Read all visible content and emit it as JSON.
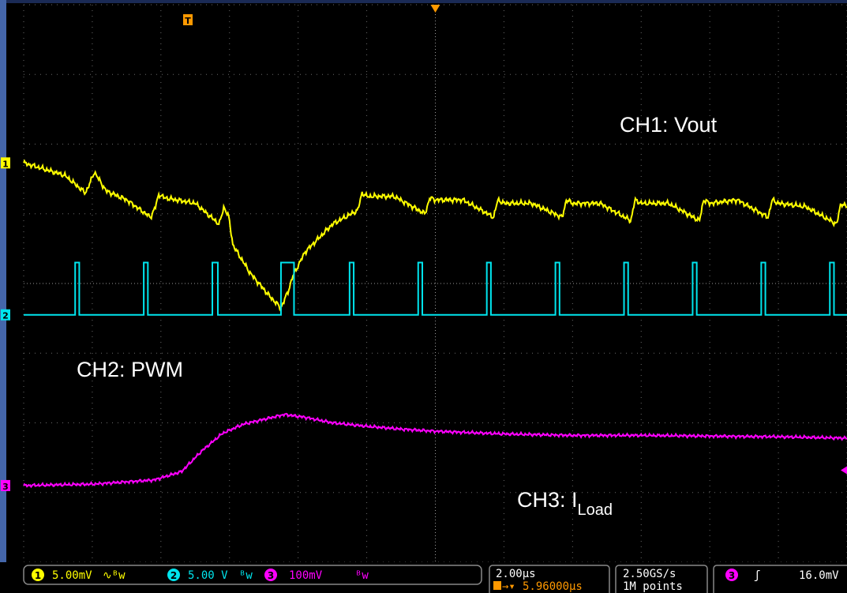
{
  "chart_data": {
    "type": "line",
    "title": "",
    "x_unit": "divisions",
    "xlim": [
      0,
      12
    ],
    "y_unit": "divisions",
    "ylim": [
      0,
      8
    ],
    "grid": true,
    "trigger_marker": "T",
    "series": [
      {
        "name": "CH1: Vout",
        "color": "#ffff00",
        "channel_marker": "1",
        "x": [
          0,
          0.6,
          0.9,
          0.97,
          1.03,
          1.2,
          1.5,
          1.85,
          1.92,
          1.97,
          2.05,
          2.5,
          2.85,
          2.92,
          2.99,
          3.05,
          3.3,
          3.6,
          3.75,
          3.86,
          3.92,
          4.1,
          4.5,
          4.87,
          4.93,
          5.0,
          5.4,
          5.85,
          5.92,
          6.0,
          6.4,
          6.85,
          6.91,
          7.0,
          7.4,
          7.85,
          7.91,
          8.0,
          8.4,
          8.85,
          8.91,
          9.0,
          9.4,
          9.85,
          9.91,
          10.0,
          10.4,
          10.85,
          10.91,
          11.0,
          11.4,
          11.85,
          11.91,
          12.0
        ],
        "y": [
          5.73,
          5.55,
          5.3,
          5.45,
          5.6,
          5.33,
          5.2,
          4.95,
          5.1,
          5.28,
          5.23,
          5.15,
          4.85,
          5.1,
          4.95,
          4.55,
          4.15,
          3.8,
          3.65,
          3.9,
          4.1,
          4.45,
          4.85,
          5.05,
          5.3,
          5.25,
          5.25,
          5.0,
          5.23,
          5.2,
          5.2,
          4.95,
          5.2,
          5.15,
          5.15,
          4.95,
          5.2,
          5.15,
          5.15,
          4.9,
          5.2,
          5.15,
          5.15,
          4.9,
          5.2,
          5.15,
          5.2,
          4.95,
          5.2,
          5.15,
          5.1,
          4.85,
          5.15,
          5.1
        ]
      },
      {
        "name": "CH2: PWM",
        "color": "#00e5ee",
        "channel_marker": "2",
        "pulse_starts": [
          0.75,
          1.75,
          2.75,
          3.75,
          4.75,
          5.75,
          6.75,
          7.75,
          8.75,
          9.75,
          10.75,
          11.75
        ],
        "pulse_widths": [
          0.06,
          0.06,
          0.08,
          0.19,
          0.06,
          0.06,
          0.06,
          0.06,
          0.06,
          0.06,
          0.06,
          0.06
        ],
        "low_level": 3.55,
        "high_level": 4.3
      },
      {
        "name": "CH3: I",
        "name_subscript": "Load",
        "color": "#ff00ff",
        "channel_marker": "3",
        "x": [
          0,
          1.0,
          1.9,
          2.3,
          2.6,
          2.9,
          3.2,
          3.5,
          3.8,
          4.1,
          4.5,
          5.0,
          5.5,
          6.0,
          6.5,
          7.0,
          8.0,
          9.0,
          10.0,
          11.0,
          12.0
        ],
        "y": [
          1.1,
          1.12,
          1.18,
          1.3,
          1.6,
          1.85,
          1.98,
          2.05,
          2.12,
          2.08,
          2.0,
          1.95,
          1.91,
          1.88,
          1.86,
          1.84,
          1.82,
          1.82,
          1.81,
          1.8,
          1.78
        ]
      }
    ],
    "labels": {
      "ch1": "CH1: Vout",
      "ch2": "CH2: PWM",
      "ch3_main": "CH3: I",
      "ch3_sub": "Load"
    }
  },
  "status_bar": {
    "ch1_num": "1",
    "ch1_scale": "5.00mV",
    "ch2_num": "2",
    "ch2_scale": "5.00 V",
    "ch3_num": "3",
    "ch3_scale": "100mV",
    "timebase": "2.00µs",
    "trigger_position": "5.96000µs",
    "sample_rate": "2.50GS/s",
    "record_length": "1M points",
    "trigger_source": "3",
    "trigger_level": "16.0mV",
    "colors": {
      "ch1": "#ffff00",
      "ch2": "#00e5ee",
      "ch3": "#ff00ff",
      "trigger": "#ff9900"
    }
  }
}
